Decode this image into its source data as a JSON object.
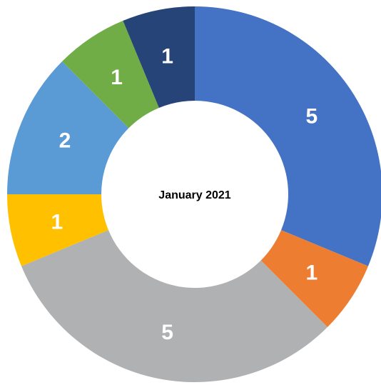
{
  "chart_data": {
    "type": "donut",
    "title": "January 2021",
    "values": [
      5,
      1,
      5,
      1,
      2,
      1,
      1
    ],
    "colors": [
      "#4472c4",
      "#ed7d31",
      "#b0b1b3",
      "#ffc000",
      "#5b9bd5",
      "#70ad47",
      "#264478"
    ]
  }
}
